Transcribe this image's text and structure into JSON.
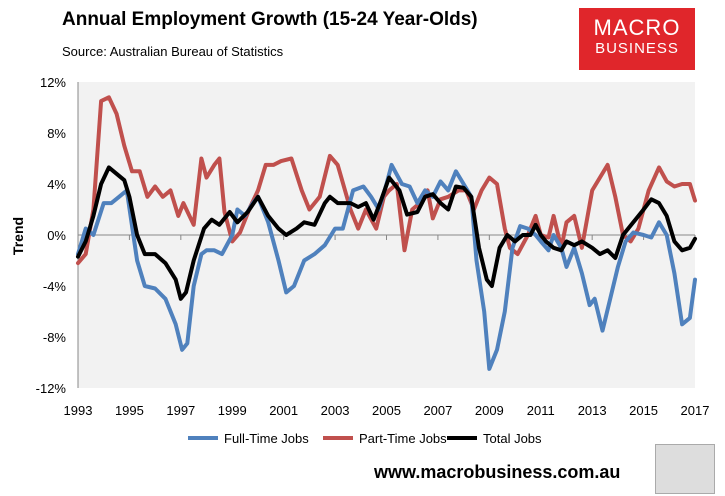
{
  "logo": {
    "line1": "MACRO",
    "line2": "BUSINESS"
  },
  "footer": {
    "url": "www.macrobusiness.com.au"
  },
  "colors": {
    "full_time": "#4f81bd",
    "part_time": "#c0504d",
    "total": "#000000",
    "plot_bg": "#f2f2f2",
    "logo_bg": "#e0262b"
  },
  "chart_data": {
    "type": "line",
    "title": "Annual Employment Growth (15-24 Year-Olds)",
    "subtitle": "Source: Australian Bureau of Statistics",
    "xlabel": "",
    "ylabel": "Trend",
    "xlim": [
      1993,
      2017
    ],
    "ylim": [
      -12,
      12
    ],
    "xticks": [
      "1993",
      "1995",
      "1997",
      "1999",
      "2001",
      "2003",
      "2005",
      "2007",
      "2009",
      "2011",
      "2013",
      "2015",
      "2017"
    ],
    "yticks": [
      "12%",
      "8%",
      "4%",
      "0%",
      "-4%",
      "-8%",
      "-12%"
    ],
    "grid": false,
    "legend": "bottom",
    "series": [
      {
        "name": "Full-Time Jobs",
        "points": [
          [
            1993.0,
            -1.5
          ],
          [
            1993.3,
            0.5
          ],
          [
            1993.6,
            0
          ],
          [
            1994.0,
            2.5
          ],
          [
            1994.3,
            2.5
          ],
          [
            1994.6,
            3
          ],
          [
            1994.9,
            3.5
          ],
          [
            1995.3,
            -2
          ],
          [
            1995.6,
            -4
          ],
          [
            1996.0,
            -4.2
          ],
          [
            1996.4,
            -5
          ],
          [
            1996.8,
            -7
          ],
          [
            1997.05,
            -9
          ],
          [
            1997.25,
            -8.5
          ],
          [
            1997.5,
            -4
          ],
          [
            1997.8,
            -1.5
          ],
          [
            1998.0,
            -1.2
          ],
          [
            1998.3,
            -1.2
          ],
          [
            1998.6,
            -1.5
          ],
          [
            1999.0,
            0
          ],
          [
            1999.2,
            2
          ],
          [
            1999.5,
            1.5
          ],
          [
            1999.8,
            2.5
          ],
          [
            2000.0,
            3
          ],
          [
            2000.4,
            1
          ],
          [
            2000.8,
            -2
          ],
          [
            2001.1,
            -4.5
          ],
          [
            2001.4,
            -4
          ],
          [
            2001.8,
            -2
          ],
          [
            2002.2,
            -1.5
          ],
          [
            2002.6,
            -0.8
          ],
          [
            2003.0,
            0.5
          ],
          [
            2003.3,
            0.5
          ],
          [
            2003.7,
            3.5
          ],
          [
            2004.1,
            3.8
          ],
          [
            2004.4,
            3
          ],
          [
            2004.7,
            2
          ],
          [
            2005.0,
            4
          ],
          [
            2005.2,
            5.5
          ],
          [
            2005.6,
            4
          ],
          [
            2005.9,
            3.8
          ],
          [
            2006.2,
            2.5
          ],
          [
            2006.5,
            3.5
          ],
          [
            2006.8,
            3
          ],
          [
            2007.1,
            4.2
          ],
          [
            2007.4,
            3.5
          ],
          [
            2007.7,
            5
          ],
          [
            2008.0,
            4
          ],
          [
            2008.3,
            3
          ],
          [
            2008.5,
            -2
          ],
          [
            2008.8,
            -6
          ],
          [
            2009.0,
            -10.5
          ],
          [
            2009.3,
            -9
          ],
          [
            2009.6,
            -6
          ],
          [
            2009.9,
            -1
          ],
          [
            2010.2,
            0.7
          ],
          [
            2010.5,
            0.5
          ],
          [
            2010.8,
            0
          ],
          [
            2011.0,
            -0.5
          ],
          [
            2011.3,
            -1.2
          ],
          [
            2011.5,
            0
          ],
          [
            2011.8,
            -1
          ],
          [
            2012.0,
            -2.5
          ],
          [
            2012.3,
            -1
          ],
          [
            2012.6,
            -3
          ],
          [
            2012.9,
            -5.5
          ],
          [
            2013.1,
            -5
          ],
          [
            2013.4,
            -7.5
          ],
          [
            2013.7,
            -5
          ],
          [
            2014.0,
            -2.5
          ],
          [
            2014.3,
            -0.5
          ],
          [
            2014.6,
            0.2
          ],
          [
            2015.0,
            0
          ],
          [
            2015.3,
            -0.2
          ],
          [
            2015.6,
            1
          ],
          [
            2015.9,
            0
          ],
          [
            2016.2,
            -3
          ],
          [
            2016.5,
            -7
          ],
          [
            2016.8,
            -6.5
          ],
          [
            2017.0,
            -3.5
          ]
        ]
      },
      {
        "name": "Part-Time Jobs",
        "points": [
          [
            1993.0,
            -2.2
          ],
          [
            1993.3,
            -1.5
          ],
          [
            1993.6,
            2
          ],
          [
            1993.9,
            10.5
          ],
          [
            1994.2,
            10.8
          ],
          [
            1994.5,
            9.5
          ],
          [
            1994.8,
            7
          ],
          [
            1995.1,
            5
          ],
          [
            1995.4,
            5
          ],
          [
            1995.7,
            3
          ],
          [
            1996.0,
            3.8
          ],
          [
            1996.3,
            3
          ],
          [
            1996.6,
            3.5
          ],
          [
            1996.9,
            1.5
          ],
          [
            1997.1,
            2.5
          ],
          [
            1997.5,
            0.8
          ],
          [
            1997.8,
            6
          ],
          [
            1998.0,
            4.5
          ],
          [
            1998.3,
            5.5
          ],
          [
            1998.5,
            6
          ],
          [
            1998.7,
            1.8
          ],
          [
            1999.0,
            -0.5
          ],
          [
            1999.3,
            0.2
          ],
          [
            1999.7,
            2.2
          ],
          [
            2000.0,
            3.5
          ],
          [
            2000.3,
            5.5
          ],
          [
            2000.6,
            5.5
          ],
          [
            2000.9,
            5.8
          ],
          [
            2001.3,
            6
          ],
          [
            2001.7,
            3.5
          ],
          [
            2002.0,
            2
          ],
          [
            2002.4,
            3
          ],
          [
            2002.8,
            6.2
          ],
          [
            2003.1,
            5.5
          ],
          [
            2003.6,
            2
          ],
          [
            2003.9,
            0.5
          ],
          [
            2004.2,
            2
          ],
          [
            2004.6,
            0.5
          ],
          [
            2004.9,
            3
          ],
          [
            2005.1,
            3.5
          ],
          [
            2005.4,
            4
          ],
          [
            2005.7,
            -1.2
          ],
          [
            2006.0,
            2
          ],
          [
            2006.3,
            2.5
          ],
          [
            2006.6,
            3.5
          ],
          [
            2006.8,
            1.3
          ],
          [
            2007.1,
            2.8
          ],
          [
            2007.4,
            3
          ],
          [
            2007.8,
            3.5
          ],
          [
            2008.1,
            3.5
          ],
          [
            2008.4,
            2
          ],
          [
            2008.7,
            3.5
          ],
          [
            2009.0,
            4.5
          ],
          [
            2009.3,
            4
          ],
          [
            2009.6,
            0.5
          ],
          [
            2009.8,
            -1
          ],
          [
            2010.1,
            -1.5
          ],
          [
            2010.5,
            0
          ],
          [
            2010.8,
            1.5
          ],
          [
            2011.0,
            0
          ],
          [
            2011.3,
            -0.2
          ],
          [
            2011.5,
            1.5
          ],
          [
            2011.8,
            -1
          ],
          [
            2012.0,
            1
          ],
          [
            2012.3,
            1.5
          ],
          [
            2012.6,
            -1
          ],
          [
            2013.0,
            3.5
          ],
          [
            2013.3,
            4.5
          ],
          [
            2013.6,
            5.5
          ],
          [
            2013.9,
            3
          ],
          [
            2014.2,
            0
          ],
          [
            2014.5,
            -0.5
          ],
          [
            2014.8,
            0.5
          ],
          [
            2015.2,
            3.5
          ],
          [
            2015.6,
            5.3
          ],
          [
            2015.9,
            4.2
          ],
          [
            2016.2,
            3.8
          ],
          [
            2016.5,
            4
          ],
          [
            2016.8,
            4
          ],
          [
            2017.0,
            2.7
          ]
        ]
      },
      {
        "name": "Total Jobs",
        "points": [
          [
            1993.0,
            -1.7
          ],
          [
            1993.3,
            -0.5
          ],
          [
            1993.6,
            1.5
          ],
          [
            1993.9,
            4
          ],
          [
            1994.2,
            5.3
          ],
          [
            1994.5,
            4.8
          ],
          [
            1994.8,
            4.3
          ],
          [
            1995.0,
            3
          ],
          [
            1995.3,
            0
          ],
          [
            1995.6,
            -1.5
          ],
          [
            1996.0,
            -1.5
          ],
          [
            1996.4,
            -2.2
          ],
          [
            1996.8,
            -3.5
          ],
          [
            1997.0,
            -5
          ],
          [
            1997.2,
            -4.5
          ],
          [
            1997.5,
            -2
          ],
          [
            1997.9,
            0.5
          ],
          [
            1998.2,
            1.2
          ],
          [
            1998.5,
            0.8
          ],
          [
            1998.9,
            1.8
          ],
          [
            1999.2,
            1
          ],
          [
            1999.6,
            1.8
          ],
          [
            2000.0,
            3
          ],
          [
            2000.4,
            1.5
          ],
          [
            2000.8,
            0.5
          ],
          [
            2001.1,
            0
          ],
          [
            2001.5,
            0.5
          ],
          [
            2001.8,
            1
          ],
          [
            2002.2,
            0.8
          ],
          [
            2002.6,
            2.5
          ],
          [
            2002.8,
            3
          ],
          [
            2003.1,
            2.5
          ],
          [
            2003.6,
            2.5
          ],
          [
            2003.9,
            2.2
          ],
          [
            2004.2,
            2.5
          ],
          [
            2004.5,
            1.2
          ],
          [
            2004.8,
            2.8
          ],
          [
            2005.1,
            4.5
          ],
          [
            2005.5,
            3.5
          ],
          [
            2005.8,
            1.6
          ],
          [
            2006.2,
            1.8
          ],
          [
            2006.5,
            3
          ],
          [
            2006.8,
            3.2
          ],
          [
            2007.1,
            2.5
          ],
          [
            2007.4,
            2
          ],
          [
            2007.7,
            3.8
          ],
          [
            2008.0,
            3.7
          ],
          [
            2008.3,
            3
          ],
          [
            2008.6,
            -1
          ],
          [
            2008.9,
            -3.5
          ],
          [
            2009.1,
            -4
          ],
          [
            2009.4,
            -1
          ],
          [
            2009.7,
            0
          ],
          [
            2010.0,
            -0.5
          ],
          [
            2010.3,
            0
          ],
          [
            2010.6,
            0
          ],
          [
            2010.8,
            0.8
          ],
          [
            2011.0,
            0
          ],
          [
            2011.2,
            -0.5
          ],
          [
            2011.5,
            -1
          ],
          [
            2011.8,
            -1.2
          ],
          [
            2012.0,
            -0.5
          ],
          [
            2012.3,
            -0.8
          ],
          [
            2012.6,
            -0.5
          ],
          [
            2013.0,
            -1
          ],
          [
            2013.3,
            -1.5
          ],
          [
            2013.6,
            -1.2
          ],
          [
            2013.9,
            -1.8
          ],
          [
            2014.2,
            0
          ],
          [
            2014.6,
            1
          ],
          [
            2015.0,
            2
          ],
          [
            2015.3,
            2.8
          ],
          [
            2015.6,
            2.5
          ],
          [
            2015.9,
            1.5
          ],
          [
            2016.2,
            -0.5
          ],
          [
            2016.5,
            -1.2
          ],
          [
            2016.8,
            -1
          ],
          [
            2017.0,
            -0.3
          ]
        ]
      }
    ]
  }
}
